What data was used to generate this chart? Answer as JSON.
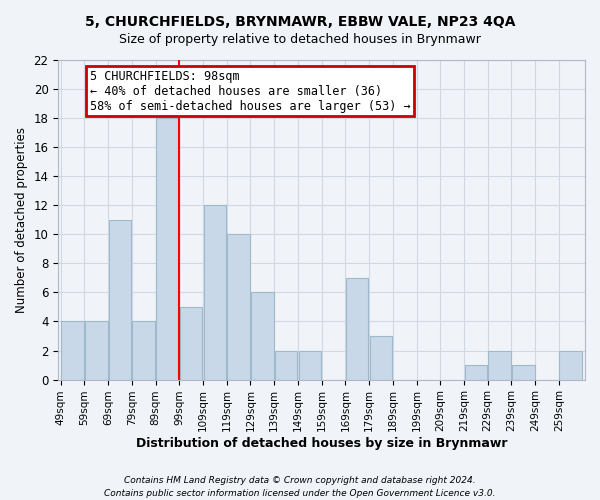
{
  "title": "5, CHURCHFIELDS, BRYNMAWR, EBBW VALE, NP23 4QA",
  "subtitle": "Size of property relative to detached houses in Brynmawr",
  "xlabel": "Distribution of detached houses by size in Brynmawr",
  "ylabel": "Number of detached properties",
  "bar_color": "#c8d8e8",
  "bar_edgecolor": "#a0b8cc",
  "bins": [
    49,
    59,
    69,
    79,
    89,
    99,
    109,
    119,
    129,
    139,
    149,
    159,
    169,
    179,
    189,
    199,
    209,
    219,
    229,
    239,
    249,
    259
  ],
  "counts": [
    4,
    4,
    11,
    4,
    18,
    5,
    12,
    10,
    6,
    2,
    2,
    0,
    7,
    3,
    0,
    0,
    0,
    1,
    2,
    1,
    0,
    2
  ],
  "tick_labels": [
    "49sqm",
    "59sqm",
    "69sqm",
    "79sqm",
    "89sqm",
    "99sqm",
    "109sqm",
    "119sqm",
    "129sqm",
    "139sqm",
    "149sqm",
    "159sqm",
    "169sqm",
    "179sqm",
    "189sqm",
    "199sqm",
    "209sqm",
    "219sqm",
    "229sqm",
    "239sqm",
    "249sqm",
    "259sqm"
  ],
  "property_line_x": 98,
  "ylim": [
    0,
    22
  ],
  "yticks": [
    0,
    2,
    4,
    6,
    8,
    10,
    12,
    14,
    16,
    18,
    20,
    22
  ],
  "annotation_title": "5 CHURCHFIELDS: 98sqm",
  "annotation_line1": "← 40% of detached houses are smaller (36)",
  "annotation_line2": "58% of semi-detached houses are larger (53) →",
  "annotation_box_color": "#ffffff",
  "annotation_box_edgecolor": "#cc0000",
  "footnote1": "Contains HM Land Registry data © Crown copyright and database right 2024.",
  "footnote2": "Contains public sector information licensed under the Open Government Licence v3.0.",
  "grid_color": "#d0d8e4",
  "background_color": "#f0f4f8"
}
